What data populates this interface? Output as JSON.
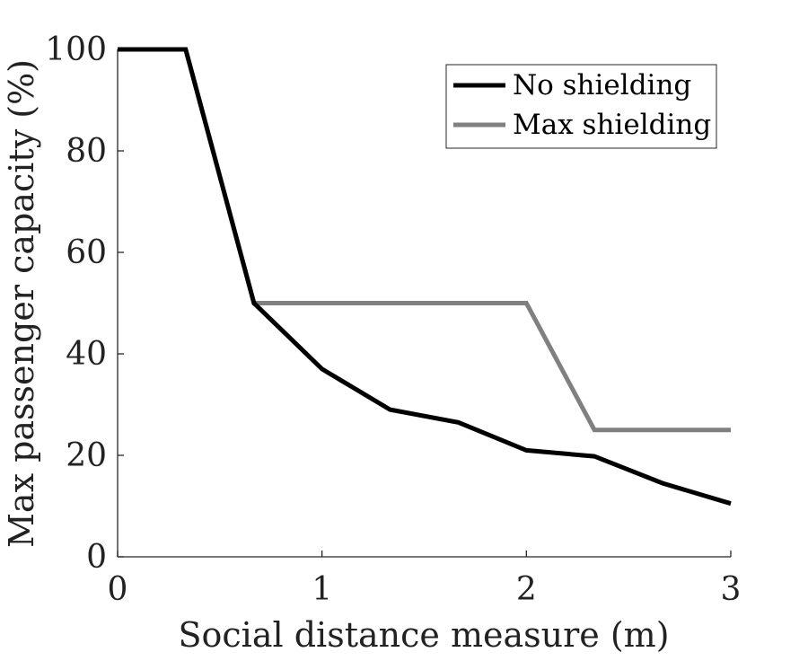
{
  "chart_data": {
    "type": "line",
    "xlabel": "Social distance measure (m)",
    "ylabel": "Max passenger capacity (%)",
    "xlim": [
      0,
      3
    ],
    "ylim": [
      0,
      100
    ],
    "x_ticks": [
      "0",
      "1",
      "2",
      "3"
    ],
    "y_ticks": [
      "0",
      "20",
      "40",
      "60",
      "80",
      "100"
    ],
    "grid": false,
    "legend_position": "top-right",
    "series": [
      {
        "name": "No shielding",
        "color": "#000000",
        "x": [
          0,
          0.333,
          0.667,
          1.0,
          1.333,
          1.667,
          2.0,
          2.333,
          2.667,
          3.0
        ],
        "y": [
          100,
          100,
          50,
          37,
          29,
          26.5,
          21,
          19.8,
          14.5,
          10.5
        ]
      },
      {
        "name": "Max shielding",
        "color": "#808080",
        "x": [
          0,
          0.333,
          0.667,
          1.0,
          1.333,
          1.667,
          2.0,
          2.333,
          2.667,
          3.0
        ],
        "y": [
          100,
          100,
          50,
          50,
          50,
          50,
          50,
          25,
          25,
          25
        ]
      }
    ]
  }
}
